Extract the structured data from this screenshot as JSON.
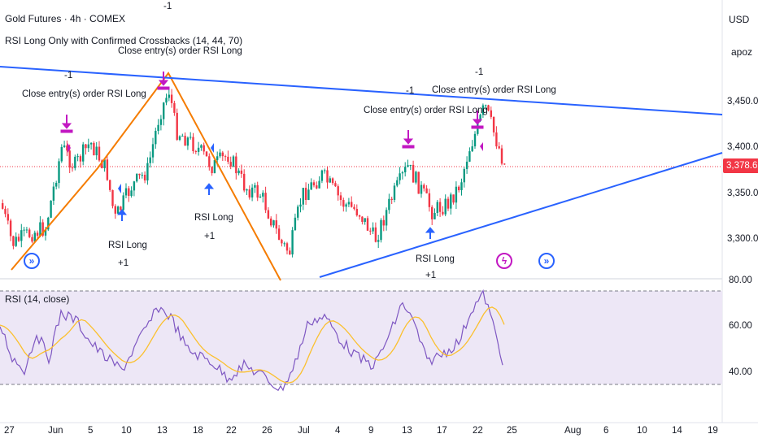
{
  "header": {
    "symbol_title": "Gold Futures · 4h · COMEX",
    "strategy_title": "RSI Long Only with Confirmed Crossbacks (14, 44, 70)",
    "currency": "USD",
    "user": "apoz"
  },
  "price_axis": {
    "ticks": [
      "3,450.0",
      "3,400.0",
      "3,350.0",
      "3,300.0"
    ],
    "last_price": "3,378.6"
  },
  "rsi_pane": {
    "title": "RSI (14, close)",
    "ticks": [
      "80.00",
      "60.00",
      "40.00"
    ]
  },
  "time_axis": {
    "labels": [
      "27",
      "Jun",
      "5",
      "10",
      "13",
      "18",
      "22",
      "26",
      "Jul",
      "4",
      "9",
      "13",
      "17",
      "22",
      "25",
      "Aug",
      "6",
      "10",
      "14",
      "19"
    ]
  },
  "annotations": {
    "close_label": "Close entry(s) order RSI Long",
    "minus_one": "-1",
    "rsi_long": "RSI Long",
    "plus_one": "+1"
  },
  "colors": {
    "up": "#089981",
    "down": "#f23645",
    "trend_orange": "#f57c00",
    "trend_blue": "#2962ff",
    "rsi_line": "#7e57c2",
    "rsi_ma": "#fbc02d",
    "rsi_bg": "#ede7f6",
    "entry_arrow": "#2962ff",
    "exit_arrow": "#c218c2"
  },
  "icons": {
    "event_icon_1": "lightning-icon",
    "event_icon_2": "split-icon"
  }
}
